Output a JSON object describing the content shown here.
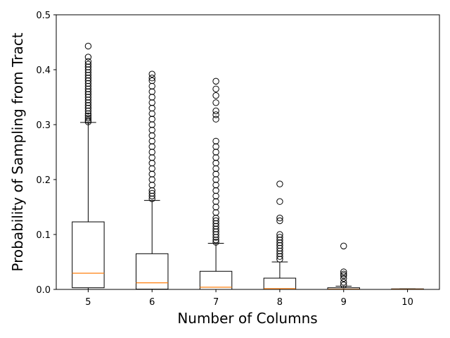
{
  "chart_data": {
    "type": "box",
    "xlabel": "Number of Columns",
    "ylabel": "Probability of Sampling from Tract",
    "categories": [
      "5",
      "6",
      "7",
      "8",
      "9",
      "10"
    ],
    "box_color": "#000000",
    "median_color": "#ff7f0e",
    "ylim": [
      0,
      0.5
    ],
    "yticks": [
      {
        "value": 0,
        "label": "0.0"
      },
      0.1,
      0.2,
      0.3,
      0.4,
      0.5
    ],
    "boxes": [
      {
        "whislo": 0,
        "q1": 0.003,
        "med": 0.0295,
        "q3": 0.123,
        "whishi": 0.304,
        "fliers": [
          0.305,
          0.308,
          0.312,
          0.316,
          0.32,
          0.325,
          0.33,
          0.335,
          0.34,
          0.345,
          0.35,
          0.355,
          0.36,
          0.365,
          0.37,
          0.375,
          0.38,
          0.385,
          0.39,
          0.395,
          0.4,
          0.405,
          0.41,
          0.415,
          0.423,
          0.443
        ]
      },
      {
        "whislo": 0,
        "q1": 0.0005,
        "med": 0.012,
        "q3": 0.065,
        "whishi": 0.162,
        "fliers": [
          0.165,
          0.17,
          0.175,
          0.18,
          0.19,
          0.2,
          0.21,
          0.22,
          0.23,
          0.24,
          0.25,
          0.26,
          0.27,
          0.28,
          0.29,
          0.3,
          0.31,
          0.32,
          0.33,
          0.34,
          0.35,
          0.36,
          0.37,
          0.38,
          0.385,
          0.392
        ]
      },
      {
        "whislo": 0,
        "q1": 0,
        "med": 0.004,
        "q3": 0.033,
        "whishi": 0.084,
        "fliers": [
          0.086,
          0.09,
          0.095,
          0.1,
          0.105,
          0.11,
          0.115,
          0.12,
          0.125,
          0.13,
          0.14,
          0.15,
          0.16,
          0.17,
          0.18,
          0.19,
          0.2,
          0.21,
          0.22,
          0.23,
          0.24,
          0.25,
          0.26,
          0.27,
          0.31,
          0.318,
          0.325,
          0.34,
          0.353,
          0.365,
          0.379
        ]
      },
      {
        "whislo": 0,
        "q1": 0,
        "med": 0.0015,
        "q3": 0.0205,
        "whishi": 0.05,
        "fliers": [
          0.055,
          0.06,
          0.065,
          0.07,
          0.075,
          0.08,
          0.085,
          0.09,
          0.095,
          0.1,
          0.125,
          0.13,
          0.16,
          0.192
        ]
      },
      {
        "whislo": 0,
        "q1": 0,
        "med": 0.0005,
        "q3": 0.003,
        "whishi": 0.006,
        "fliers": [
          0.008,
          0.013,
          0.02,
          0.025,
          0.028,
          0.032,
          0.079
        ]
      },
      {
        "whislo": 0,
        "q1": 0,
        "med": 0.0003,
        "q3": 0.001,
        "whishi": 0.001,
        "fliers": []
      }
    ]
  }
}
